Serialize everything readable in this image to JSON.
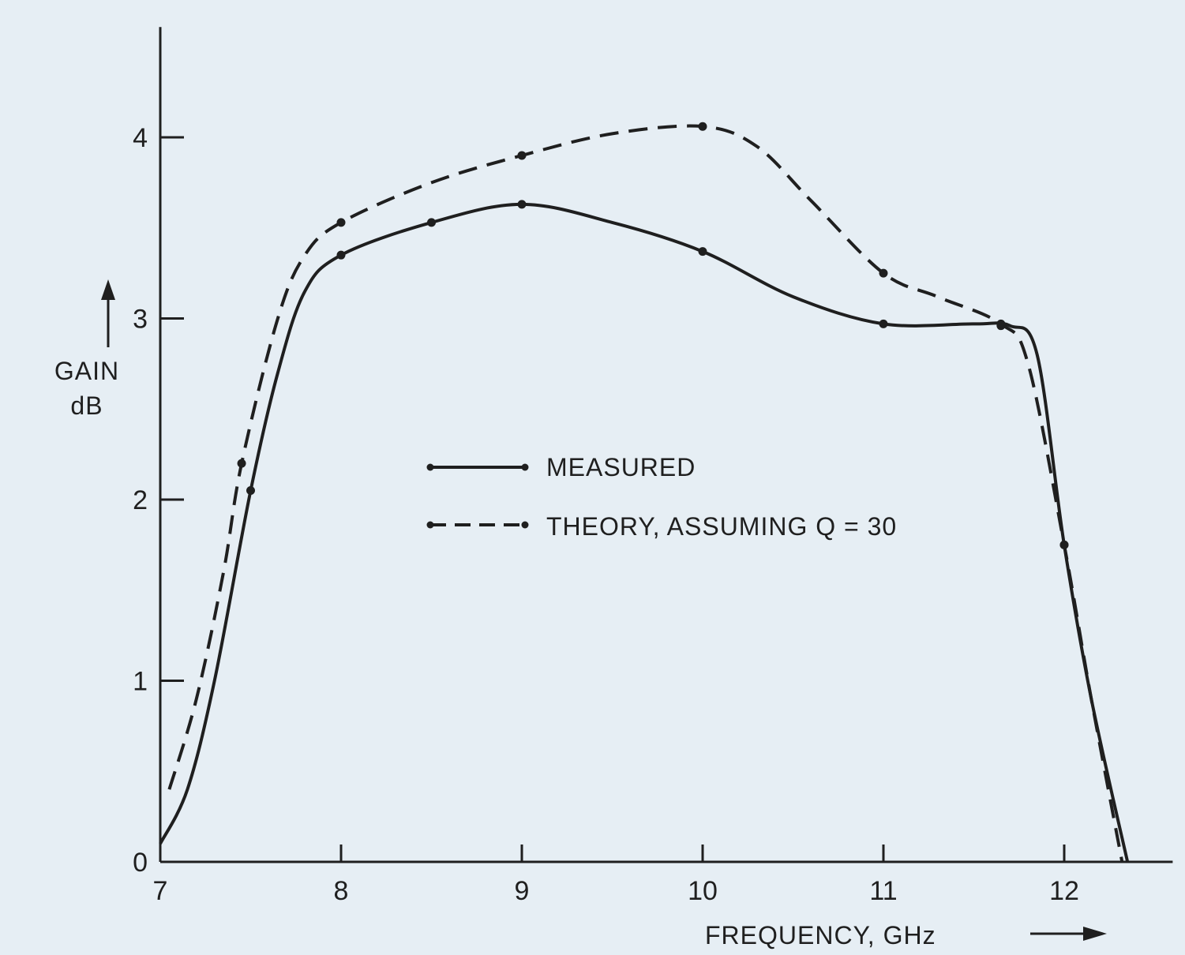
{
  "colors": {
    "background": "#e6eef4",
    "ink": "#1f1f1f"
  },
  "chart_data": {
    "type": "line",
    "title": "",
    "xlabel": "FREQUENCY, GHz",
    "ylabel_line1": "GAIN",
    "ylabel_line2": "dB",
    "xlim": [
      7,
      12.6
    ],
    "ylim": [
      0,
      4.5
    ],
    "x_ticks": [
      7,
      8,
      9,
      10,
      11,
      12
    ],
    "y_ticks": [
      0,
      1,
      2,
      3,
      4
    ],
    "grid": false,
    "legend_position": "center",
    "series": [
      {
        "name": "MEASURED",
        "style": "solid-with-dots",
        "points": [
          [
            7.0,
            0.1
          ],
          [
            7.15,
            0.4
          ],
          [
            7.3,
            1.0
          ],
          [
            7.5,
            2.05
          ],
          [
            7.65,
            2.7
          ],
          [
            7.8,
            3.15
          ],
          [
            8.0,
            3.35
          ],
          [
            8.5,
            3.53
          ],
          [
            9.0,
            3.63
          ],
          [
            9.5,
            3.53
          ],
          [
            10.0,
            3.37
          ],
          [
            10.5,
            3.12
          ],
          [
            11.0,
            2.97
          ],
          [
            11.5,
            2.97
          ],
          [
            11.7,
            2.96
          ],
          [
            11.85,
            2.8
          ],
          [
            12.0,
            1.75
          ],
          [
            12.15,
            0.9
          ],
          [
            12.35,
            0.0
          ]
        ],
        "markers": [
          [
            7.5,
            2.05
          ],
          [
            8.0,
            3.35
          ],
          [
            8.5,
            3.53
          ],
          [
            9.0,
            3.63
          ],
          [
            10.0,
            3.37
          ],
          [
            11.0,
            2.97
          ],
          [
            11.65,
            2.96
          ],
          [
            12.0,
            1.75
          ]
        ]
      },
      {
        "name": "THEORY, ASSUMING Q = 30",
        "style": "dashed-with-dots",
        "points": [
          [
            7.05,
            0.4
          ],
          [
            7.2,
            0.9
          ],
          [
            7.35,
            1.6
          ],
          [
            7.45,
            2.2
          ],
          [
            7.65,
            3.0
          ],
          [
            7.8,
            3.35
          ],
          [
            8.0,
            3.53
          ],
          [
            8.5,
            3.75
          ],
          [
            9.0,
            3.9
          ],
          [
            9.5,
            4.02
          ],
          [
            10.0,
            4.06
          ],
          [
            10.3,
            3.95
          ],
          [
            10.6,
            3.65
          ],
          [
            11.0,
            3.25
          ],
          [
            11.3,
            3.12
          ],
          [
            11.65,
            2.97
          ],
          [
            11.8,
            2.75
          ],
          [
            12.0,
            1.75
          ],
          [
            12.15,
            0.9
          ],
          [
            12.32,
            0.0
          ]
        ],
        "markers": [
          [
            7.45,
            2.2
          ],
          [
            8.0,
            3.53
          ],
          [
            9.0,
            3.9
          ],
          [
            10.0,
            4.06
          ],
          [
            11.0,
            3.25
          ],
          [
            11.65,
            2.97
          ],
          [
            12.0,
            1.75
          ]
        ]
      }
    ]
  }
}
